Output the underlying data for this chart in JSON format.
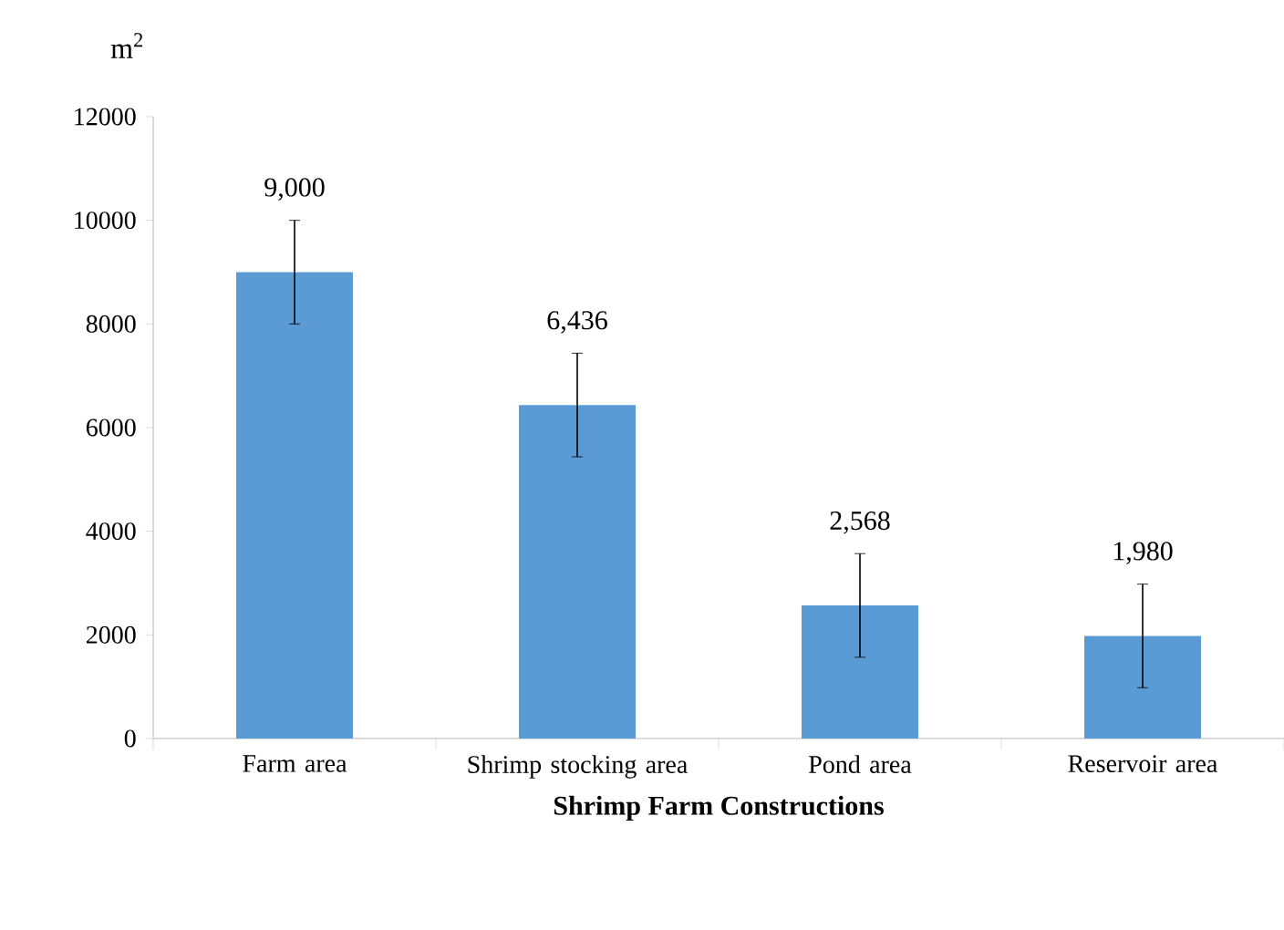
{
  "chart_data": {
    "type": "bar",
    "xlabel": "Shrimp Farm Constructions",
    "ylabel": "m$^{2}$",
    "categories": [
      "Farm area",
      "Shrimp stocking area",
      "Pond area",
      "Reservoir area"
    ],
    "values": [
      9000,
      6436,
      2568,
      1980
    ],
    "errors": [
      1000,
      1000,
      1000,
      1000
    ],
    "value_labels": [
      "9,000",
      "6,436",
      "2,568",
      "1,980"
    ],
    "color": "#5b9bd5",
    "ylim": [
      0,
      12000
    ],
    "yticks": [
      0,
      2000,
      4000,
      6000,
      8000,
      10000,
      12000
    ],
    "grid": false
  }
}
